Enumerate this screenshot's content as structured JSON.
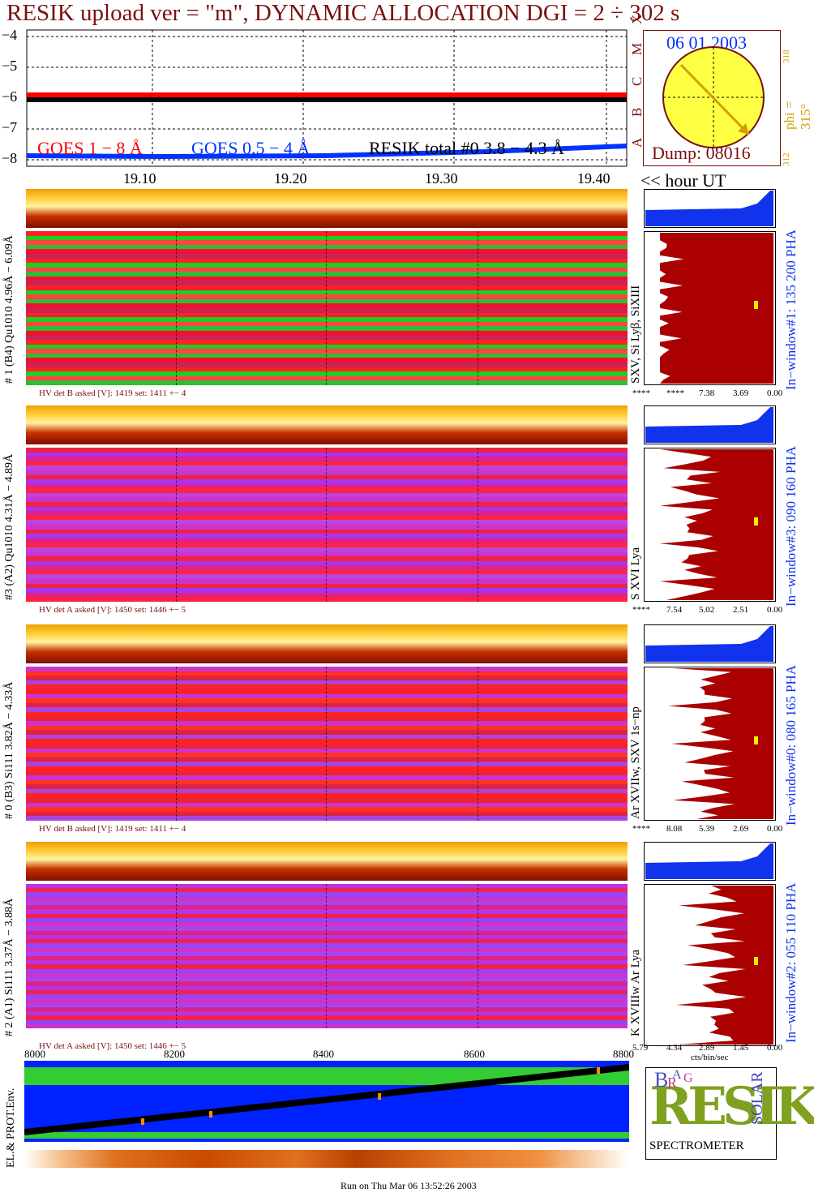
{
  "title": "RESIK upload ver = \"m\", DYNAMIC ALLOCATION  DGI =   2 ÷ 302 s",
  "footer": "Run on Thu Mar 06 13:52:26 2003",
  "goes_panel": {
    "y_ticks": [
      "−4",
      "−5",
      "−6",
      "−7",
      "−8"
    ],
    "class_letters": [
      "X",
      "M",
      "C",
      "B",
      "A"
    ],
    "legend_goes_long": "GOES 1 − 8 Å",
    "legend_goes_short": "GOES 0.5 − 4 Å",
    "legend_resik": "RESIK total #0  3.8 − 4.3 Å",
    "x_ticks": [
      "19.10",
      "19.20",
      "19.30",
      "19.40"
    ],
    "x_label": "<< hour UT",
    "colors": {
      "goes_long": "#ff0000",
      "goes_short": "#0033ff",
      "resik": "#000000"
    }
  },
  "sun_box": {
    "date": "06 01 2003",
    "dump": "Dump: 08016",
    "phi_label": "phi = 315°",
    "phi_sub": "318",
    "phi_low": "312"
  },
  "spectra_panels": [
    {
      "side_label": "# 1 (B4) Qu1010 4.96Å − 6.09Å",
      "line_label": "SXV, Si Lyβ, SiXIII",
      "hv": "HV det B asked [V]:  1419 set:  1411  +−   4",
      "window": "In−window#1:  135 200 PHA",
      "hist_ticks": [
        "****",
        "****",
        "7.38",
        "3.69",
        "0.00"
      ]
    },
    {
      "side_label": "#3 (A2) Qu1010  4.31Å − 4.89Å",
      "line_label": "S XVI Lya",
      "hv": "HV det A asked [V]:  1450 set:  1446  +−    5",
      "window": "In−window#3:  090 160 PHA",
      "hist_ticks": [
        "****",
        "7.54",
        "5.02",
        "2.51",
        "0.00"
      ]
    },
    {
      "side_label": "# 0 (B3) Si111  3.82Å − 4.33Å",
      "line_label": "Ar XVIIw,  SXV 1s−np",
      "hv": "HV det B asked [V]:  1419 set:  1411  +−   4",
      "window": "In−window#0:  080 165 PHA",
      "hist_ticks": [
        "****",
        "8.08",
        "5.39",
        "2.69",
        "0.00"
      ]
    },
    {
      "side_label": "# 2 (A1) Si111  3.37Å − 3.88Å",
      "line_label": "K XVIIIw  Ar Lya",
      "hv": "HV det A asked [V]:  1450 set:  1446  +−    5",
      "window": "In−window#2:  055 110 PHA",
      "hist_ticks": [
        "5.79",
        "4.34",
        "2.89",
        "1.45",
        "0.00"
      ]
    }
  ],
  "hist_xlabel": "cts/bin/sec",
  "env_panel": {
    "label": "EL.& PROT.Env.",
    "x_ticks": [
      "8000",
      "8200",
      "8400",
      "8600",
      "8800"
    ]
  },
  "logo": {
    "big": "RESIK",
    "b": "B",
    "r": "R",
    "a": "A",
    "g": "G",
    "solar": "SOLAR",
    "spectrometer": "SPECTROMETER"
  }
}
